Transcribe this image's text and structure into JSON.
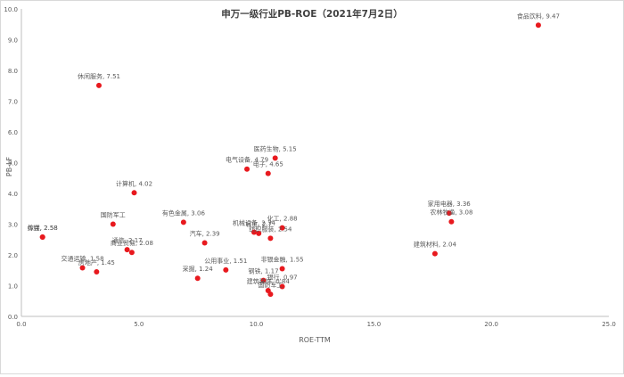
{
  "chart_data": {
    "type": "scatter",
    "title": "申万一级行业PB-ROE（2021年7月2日）",
    "xlabel": "ROE-TTM",
    "ylabel": "PB-LF",
    "xlim": [
      0,
      25
    ],
    "ylim": [
      0,
      10
    ],
    "xticks": [
      "0.0",
      "5.0",
      "10.0",
      "15.0",
      "20.0",
      "25.0"
    ],
    "yticks": [
      "0.0",
      "1.0",
      "2.0",
      "3.0",
      "4.0",
      "5.0",
      "6.0",
      "7.0",
      "8.0",
      "9.0",
      "10.0"
    ],
    "grid": false,
    "legend": "none",
    "point_color": "#e8191e",
    "label_color": "#595959",
    "points": [
      {
        "label": "食品饮料, 9.47",
        "x": 22.0,
        "y": 9.47
      },
      {
        "label": "休闲服务, 7.51",
        "x": 3.3,
        "y": 7.51
      },
      {
        "label": "医药生物, 5.15",
        "x": 10.8,
        "y": 5.15
      },
      {
        "label": "电气设备, 4.79",
        "x": 9.6,
        "y": 4.79
      },
      {
        "label": "电子, 4.65",
        "x": 10.5,
        "y": 4.65
      },
      {
        "label": "计算机, 4.02",
        "x": 4.8,
        "y": 4.02
      },
      {
        "label": "家用电器, 3.36",
        "x": 18.2,
        "y": 3.36
      },
      {
        "label": "农林牧渔, 3.08",
        "x": 18.3,
        "y": 3.08
      },
      {
        "label": "有色金属, 3.06",
        "x": 6.9,
        "y": 3.06
      },
      {
        "label": "国防军工",
        "x": 3.9,
        "y": 3.0
      },
      {
        "label": "化工, 2.88",
        "x": 11.1,
        "y": 2.88
      },
      {
        "label": "机械设备, 2.74",
        "x": 9.9,
        "y": 2.74
      },
      {
        "label": "轻工, 2.7",
        "x": 10.1,
        "y": 2.7
      },
      {
        "label": "纺织服装, 2.54",
        "x": 10.6,
        "y": 2.54
      },
      {
        "label": "传媒, 2.58",
        "x": 0.9,
        "y": 2.58
      },
      {
        "label": "综合, 2.58",
        "x": 0.9,
        "y": 2.58
      },
      {
        "label": "汽车, 2.39",
        "x": 7.8,
        "y": 2.39
      },
      {
        "label": "通信, 2.17",
        "x": 4.5,
        "y": 2.17
      },
      {
        "label": "商业贸易, 2.08",
        "x": 4.7,
        "y": 2.08
      },
      {
        "label": "建筑材料, 2.04",
        "x": 17.6,
        "y": 2.04
      },
      {
        "label": "交通运输, 1.58",
        "x": 2.6,
        "y": 1.58
      },
      {
        "label": "非银金融, 1.55",
        "x": 11.1,
        "y": 1.55
      },
      {
        "label": "公用事业, 1.51",
        "x": 8.7,
        "y": 1.51
      },
      {
        "label": "房地产, 1.45",
        "x": 3.2,
        "y": 1.45
      },
      {
        "label": "采掘, 1.24",
        "x": 7.5,
        "y": 1.24
      },
      {
        "label": "钢铁, 1.17",
        "x": 10.3,
        "y": 1.17
      },
      {
        "label": "银行, 0.97",
        "x": 11.1,
        "y": 0.97
      },
      {
        "label": "建筑装饰, 0.84",
        "x": 10.5,
        "y": 0.84
      },
      {
        "label": "国防军工",
        "x": 10.6,
        "y": 0.72
      }
    ]
  }
}
